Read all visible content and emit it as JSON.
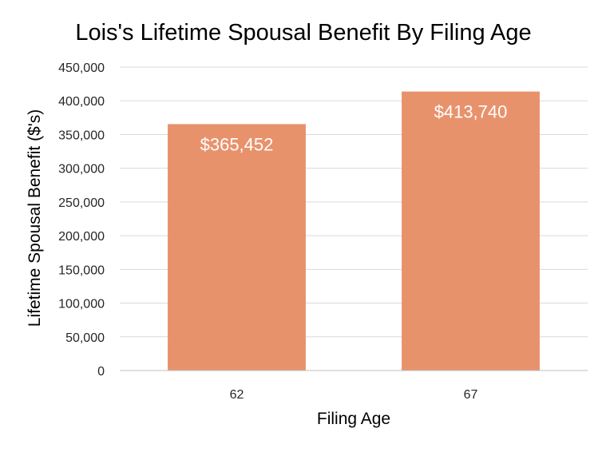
{
  "chart_data": {
    "type": "bar",
    "title": "Lois's Lifetime Spousal Benefit By Filing Age",
    "xlabel": "Filing Age",
    "ylabel": "Lifetime Spousal Benefit ($'s)",
    "categories": [
      "62",
      "67"
    ],
    "values": [
      365452,
      413740
    ],
    "data_labels": [
      "$365,452",
      "$413,740"
    ],
    "ylim": [
      0,
      450000
    ],
    "yticks": [
      0,
      50000,
      100000,
      150000,
      200000,
      250000,
      300000,
      350000,
      400000,
      450000
    ],
    "ytick_labels": [
      "0",
      "50,000",
      "100,000",
      "150,000",
      "200,000",
      "250,000",
      "300,000",
      "350,000",
      "400,000",
      "450,000"
    ],
    "grid": true,
    "legend": "none",
    "colors": {
      "bar": "#e8926c",
      "grid": "#d9d9d9",
      "axis": "#bfbfbf"
    }
  }
}
